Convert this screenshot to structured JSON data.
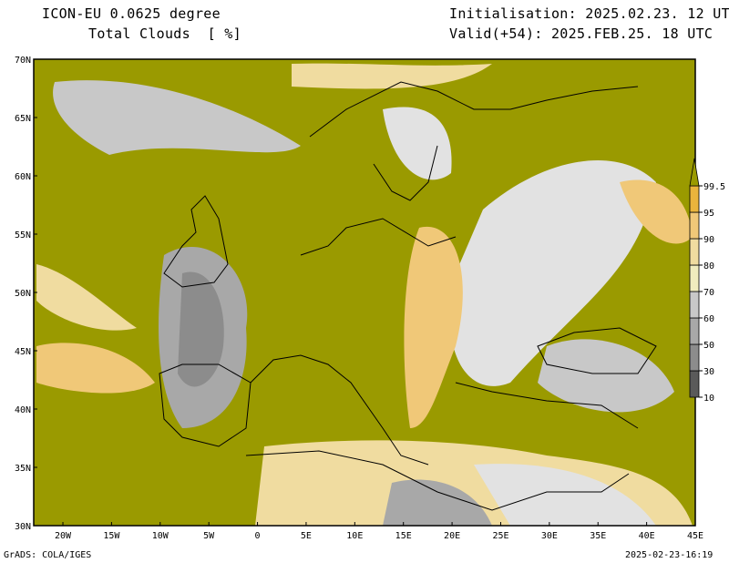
{
  "header": {
    "model": "ICON-EU 0.0625 degree",
    "field": "Total Clouds  [ %]",
    "init": "Initialisation: 2025.02.23. 12 UTC",
    "valid": "Valid(+54): 2025.FEB.25. 18 UTC"
  },
  "footer": {
    "credit": "GrADS: COLA/IGES",
    "timestamp": "2025-02-23-16:19"
  },
  "map": {
    "lon_range": [
      -23,
      45
    ],
    "lat_range": [
      30,
      70
    ],
    "lon_ticks": [
      {
        "v": -20,
        "label": "20W"
      },
      {
        "v": -15,
        "label": "15W"
      },
      {
        "v": -10,
        "label": "10W"
      },
      {
        "v": -5,
        "label": "5W"
      },
      {
        "v": 0,
        "label": "0"
      },
      {
        "v": 5,
        "label": "5E"
      },
      {
        "v": 10,
        "label": "10E"
      },
      {
        "v": 15,
        "label": "15E"
      },
      {
        "v": 20,
        "label": "20E"
      },
      {
        "v": 25,
        "label": "25E"
      },
      {
        "v": 30,
        "label": "30E"
      },
      {
        "v": 35,
        "label": "35E"
      },
      {
        "v": 40,
        "label": "40E"
      },
      {
        "v": 45,
        "label": "45E"
      }
    ],
    "lat_ticks": [
      {
        "v": 30,
        "label": "30N"
      },
      {
        "v": 35,
        "label": "35N"
      },
      {
        "v": 40,
        "label": "40N"
      },
      {
        "v": 45,
        "label": "45N"
      },
      {
        "v": 50,
        "label": "50N"
      },
      {
        "v": 55,
        "label": "55N"
      },
      {
        "v": 60,
        "label": "60N"
      },
      {
        "v": 65,
        "label": "65N"
      },
      {
        "v": 70,
        "label": "70N"
      }
    ]
  },
  "colorbar": {
    "levels": [
      "10",
      "30",
      "50",
      "60",
      "70",
      "80",
      "90",
      "95",
      "99.5"
    ],
    "colors": [
      "#5a5a5a",
      "#8c8c8c",
      "#a8a8a8",
      "#c8c8c8",
      "#f0ecbe",
      "#f0dca0",
      "#f0c878",
      "#eab43c"
    ],
    "top_color": "#9a9a00",
    "land_clear": "#e2e2e2"
  }
}
